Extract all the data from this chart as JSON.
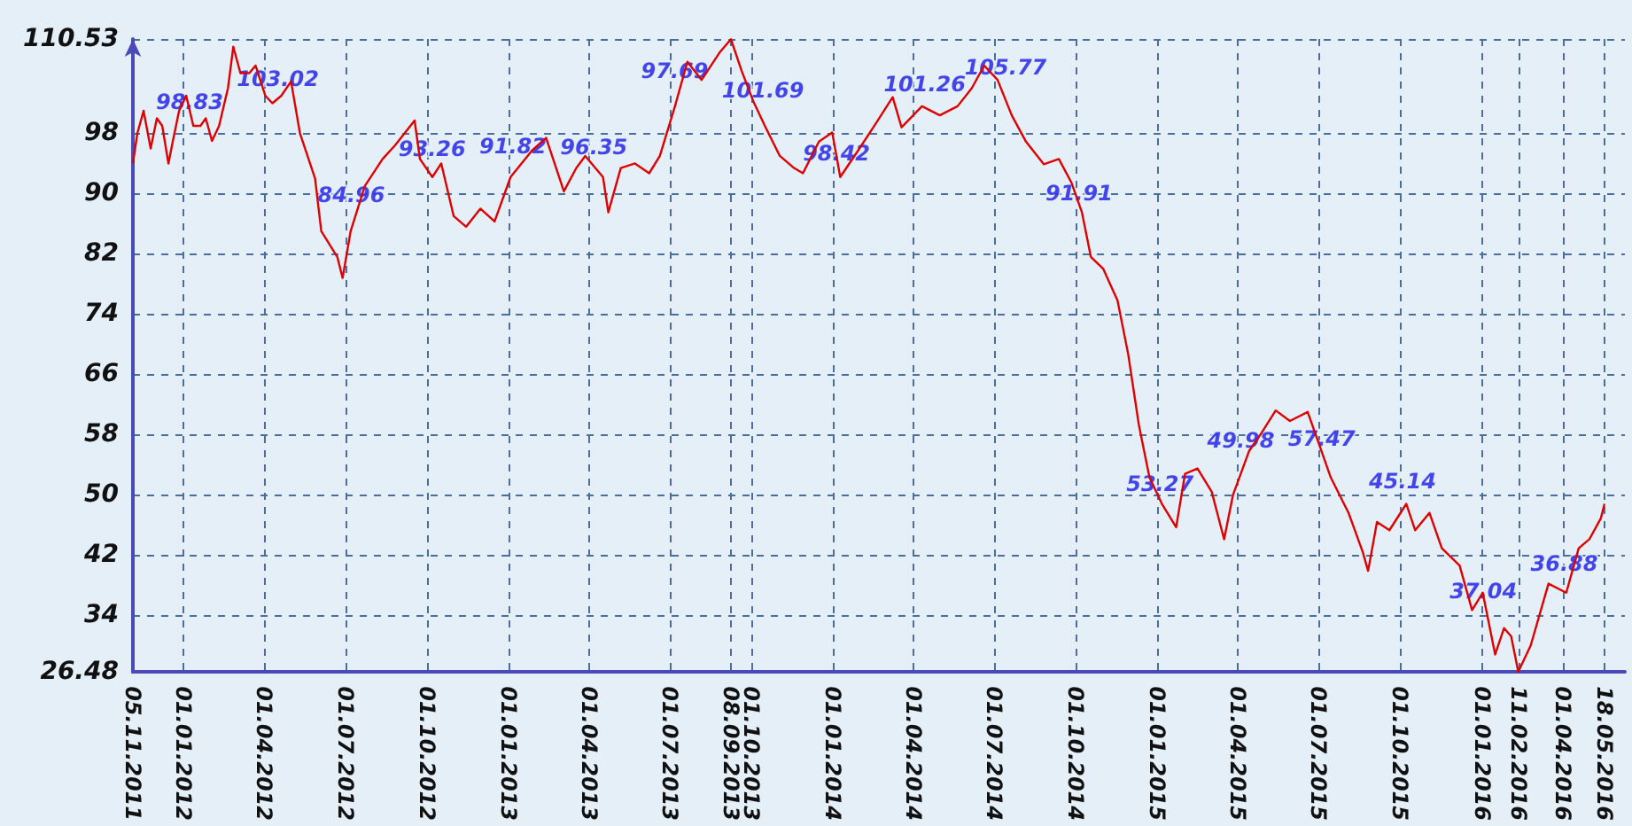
{
  "chart_data": {
    "type": "line",
    "x": [
      "2011-11-05",
      "2011-11-10",
      "2011-11-17",
      "2011-11-25",
      "2011-12-02",
      "2011-12-08",
      "2011-12-15",
      "2011-12-20",
      "2011-12-27",
      "2012-01-04",
      "2012-01-12",
      "2012-01-20",
      "2012-01-26",
      "2012-02-02",
      "2012-02-10",
      "2012-02-20",
      "2012-02-26",
      "2012-03-05",
      "2012-03-15",
      "2012-03-22",
      "2012-04-02",
      "2012-04-10",
      "2012-04-20",
      "2012-05-01",
      "2012-05-11",
      "2012-05-28",
      "2012-06-04",
      "2012-06-22",
      "2012-06-28",
      "2012-07-07",
      "2012-07-23",
      "2012-08-12",
      "2012-08-26",
      "2012-09-17",
      "2012-09-23",
      "2012-10-07",
      "2012-10-17",
      "2012-10-31",
      "2012-11-14",
      "2012-11-30",
      "2012-12-16",
      "2013-01-03",
      "2013-01-27",
      "2013-02-12",
      "2013-03-04",
      "2013-03-18",
      "2013-03-28",
      "2013-04-17",
      "2013-04-23",
      "2013-05-07",
      "2013-05-23",
      "2013-06-08",
      "2013-06-20",
      "2013-07-07",
      "2013-07-21",
      "2013-08-06",
      "2013-08-26",
      "2013-09-08",
      "2013-09-20",
      "2013-10-03",
      "2013-10-17",
      "2013-11-02",
      "2013-11-18",
      "2013-11-28",
      "2013-12-16",
      "2013-12-31",
      "2014-01-09",
      "2014-01-29",
      "2014-02-18",
      "2014-03-09",
      "2014-03-19",
      "2014-04-11",
      "2014-05-01",
      "2014-05-21",
      "2014-06-06",
      "2014-06-20",
      "2014-07-05",
      "2014-07-21",
      "2014-08-06",
      "2014-08-26",
      "2014-09-12",
      "2014-09-26",
      "2014-10-08",
      "2014-10-18",
      "2014-11-01",
      "2014-11-17",
      "2014-11-29",
      "2014-12-11",
      "2014-12-23",
      "2015-01-06",
      "2015-01-22",
      "2015-02-01",
      "2015-02-15",
      "2015-03-03",
      "2015-03-17",
      "2015-03-27",
      "2015-04-14",
      "2015-04-28",
      "2015-05-14",
      "2015-05-30",
      "2015-06-19",
      "2015-07-01",
      "2015-07-15",
      "2015-08-04",
      "2015-08-20",
      "2015-08-26",
      "2015-09-05",
      "2015-09-19",
      "2015-10-08",
      "2015-10-18",
      "2015-11-03",
      "2015-11-17",
      "2015-12-07",
      "2015-12-21",
      "2016-01-02",
      "2016-01-16",
      "2016-01-26",
      "2016-02-03",
      "2016-02-11",
      "2016-02-25",
      "2016-03-16",
      "2016-04-05",
      "2016-04-19",
      "2016-05-01",
      "2016-05-14",
      "2016-05-18"
    ],
    "series": [
      {
        "color": "#e00000",
        "values": [
          94,
          98,
          101,
          96,
          100,
          99,
          94,
          97,
          101,
          103,
          99,
          99,
          100,
          97,
          99,
          104,
          109.5,
          106,
          106,
          107,
          103,
          102,
          103,
          104.9,
          98,
          92,
          85,
          81.6,
          78.8,
          85,
          91,
          94.6,
          96.4,
          99.7,
          94.6,
          92.2,
          94,
          87,
          85.6,
          88,
          86.3,
          92.2,
          95.7,
          97.4,
          90.3,
          93.4,
          95,
          92.2,
          87.5,
          93.4,
          94,
          92.7,
          95,
          101.6,
          107.5,
          105.1,
          108.7,
          110.5,
          106.3,
          102.3,
          98.8,
          95,
          93.4,
          92.7,
          96.9,
          98.1,
          92.2,
          95.7,
          99.3,
          102.8,
          98.8,
          101.6,
          100.4,
          101.6,
          104,
          107,
          105.1,
          100.4,
          96.9,
          93.9,
          94.6,
          91.5,
          87.5,
          81.6,
          80,
          75.8,
          68.7,
          59.3,
          52.3,
          48.8,
          45.7,
          52.8,
          53.5,
          50.4,
          44.1,
          50,
          55.8,
          58.2,
          61.2,
          59.8,
          61,
          57,
          52.3,
          47.6,
          42.4,
          39.9,
          46.4,
          45.3,
          48.8,
          45.3,
          47.6,
          42.9,
          40.6,
          34.7,
          37,
          28.8,
          32.3,
          31.2,
          26.5,
          30,
          38.2,
          37,
          42.9,
          44.1,
          46.9,
          48.8
        ]
      }
    ],
    "xlim": [
      "2011-11-05",
      "2016-06-10"
    ],
    "xticks": [
      {
        "value": "2011-11-05",
        "label": "05.11.2011"
      },
      {
        "value": "2012-01-01",
        "label": "01.01.2012"
      },
      {
        "value": "2012-04-01",
        "label": "01.04.2012"
      },
      {
        "value": "2012-07-01",
        "label": "01.07.2012"
      },
      {
        "value": "2012-10-01",
        "label": "01.10.2012"
      },
      {
        "value": "2013-01-01",
        "label": "01.01.2013"
      },
      {
        "value": "2013-04-01",
        "label": "01.04.2013"
      },
      {
        "value": "2013-07-01",
        "label": "01.07.2013"
      },
      {
        "value": "2013-09-08",
        "label": "08.09.2013"
      },
      {
        "value": "2013-10-01",
        "label": "01.10.2013"
      },
      {
        "value": "2014-01-01",
        "label": "01.01.2014"
      },
      {
        "value": "2014-04-01",
        "label": "01.04.2014"
      },
      {
        "value": "2014-07-01",
        "label": "01.07.2014"
      },
      {
        "value": "2014-10-01",
        "label": "01.10.2014"
      },
      {
        "value": "2015-01-01",
        "label": "01.01.2015"
      },
      {
        "value": "2015-04-01",
        "label": "01.04.2015"
      },
      {
        "value": "2015-07-01",
        "label": "01.07.2015"
      },
      {
        "value": "2015-10-01",
        "label": "01.10.2015"
      },
      {
        "value": "2016-01-01",
        "label": "01.01.2016"
      },
      {
        "value": "2016-02-11",
        "label": "11.02.2016"
      },
      {
        "value": "2016-04-01",
        "label": "01.04.2016"
      },
      {
        "value": "2016-05-18",
        "label": "18.05.2016"
      }
    ],
    "ylim": [
      26.48,
      110.53
    ],
    "yticks": [
      26.48,
      34,
      42,
      50,
      58,
      66,
      74,
      82,
      90,
      98,
      110.53
    ],
    "grid": true,
    "line_style": "solid",
    "annotations": [
      "98.83",
      "103.02",
      "84.96",
      "93.26",
      "91.82",
      "96.35",
      "97.69",
      "101.69",
      "98.42",
      "101.26",
      "105.77",
      "91.91",
      "53.27",
      "49.98",
      "57.47",
      "45.14",
      "37.04",
      "36.88"
    ]
  }
}
